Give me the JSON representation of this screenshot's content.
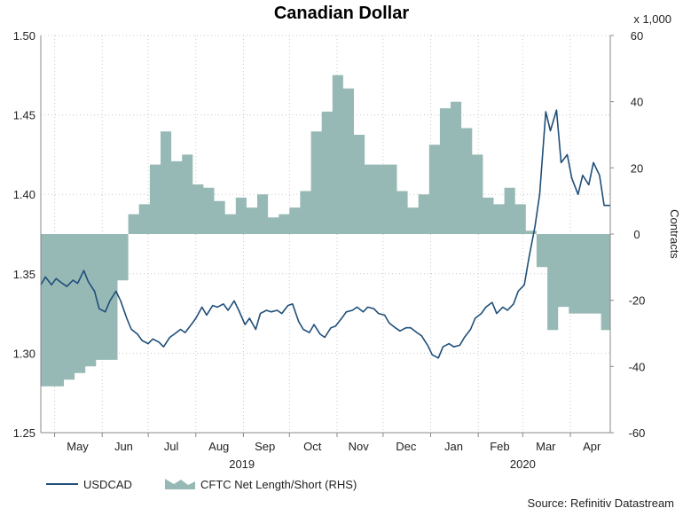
{
  "chart_data": {
    "type": "line",
    "title": "Canadian Dollar",
    "left_axis": {
      "label": "",
      "min": 1.25,
      "max": 1.5,
      "ticks": [
        "1.25",
        "1.30",
        "1.35",
        "1.40",
        "1.45",
        "1.50"
      ]
    },
    "right_axis": {
      "label": "Contracts",
      "unit_note": "x 1,000",
      "min": -60,
      "max": 60,
      "ticks": [
        "-60",
        "-40",
        "-20",
        "0",
        "20",
        "40",
        "60"
      ]
    },
    "x_range": [
      "2019-04-22",
      "2020-04-27"
    ],
    "month_labels": [
      {
        "label": "May",
        "date": "2019-05-16"
      },
      {
        "label": "Jun",
        "date": "2019-06-15"
      },
      {
        "label": "Jul",
        "date": "2019-07-16"
      },
      {
        "label": "Aug",
        "date": "2019-08-16"
      },
      {
        "label": "Sep",
        "date": "2019-09-15"
      },
      {
        "label": "Oct",
        "date": "2019-10-16"
      },
      {
        "label": "Nov",
        "date": "2019-11-15"
      },
      {
        "label": "Dec",
        "date": "2019-12-16"
      },
      {
        "label": "Jan",
        "date": "2020-01-16"
      },
      {
        "label": "Feb",
        "date": "2020-02-15"
      },
      {
        "label": "Mar",
        "date": "2020-03-16"
      },
      {
        "label": "Apr",
        "date": "2020-04-15"
      }
    ],
    "year_labels": [
      {
        "label": "2019",
        "date": "2019-08-31"
      },
      {
        "label": "2020",
        "date": "2020-03-01"
      }
    ],
    "grid_dates": [
      "2019-05-01",
      "2019-06-01",
      "2019-07-01",
      "2019-08-01",
      "2019-09-01",
      "2019-10-01",
      "2019-11-01",
      "2019-12-01",
      "2020-01-01",
      "2020-02-01",
      "2020-03-01",
      "2020-04-01"
    ],
    "series": [
      {
        "name": "CFTC Net Length/Short (RHS)",
        "type": "area",
        "axis": "right",
        "color": "#97b9b5",
        "x": [
          "2019-04-23",
          "2019-04-30",
          "2019-05-07",
          "2019-05-14",
          "2019-05-21",
          "2019-05-28",
          "2019-06-04",
          "2019-06-11",
          "2019-06-18",
          "2019-06-25",
          "2019-07-02",
          "2019-07-09",
          "2019-07-16",
          "2019-07-23",
          "2019-07-30",
          "2019-08-06",
          "2019-08-13",
          "2019-08-20",
          "2019-08-27",
          "2019-09-03",
          "2019-09-10",
          "2019-09-17",
          "2019-09-24",
          "2019-10-01",
          "2019-10-08",
          "2019-10-15",
          "2019-10-22",
          "2019-10-29",
          "2019-11-05",
          "2019-11-12",
          "2019-11-19",
          "2019-11-26",
          "2019-12-03",
          "2019-12-10",
          "2019-12-17",
          "2019-12-24",
          "2019-12-31",
          "2020-01-07",
          "2020-01-14",
          "2020-01-21",
          "2020-01-28",
          "2020-02-04",
          "2020-02-11",
          "2020-02-18",
          "2020-02-25",
          "2020-03-03",
          "2020-03-10",
          "2020-03-17",
          "2020-03-24",
          "2020-03-31",
          "2020-04-07",
          "2020-04-14",
          "2020-04-21",
          "2020-04-28"
        ],
        "values": [
          -46,
          -46,
          -44,
          -42,
          -40,
          -38,
          -38,
          -14,
          6,
          9,
          21,
          31,
          22,
          24,
          15,
          14,
          10,
          6,
          11,
          8,
          12,
          5,
          6,
          8,
          13,
          31,
          37,
          48,
          44,
          30,
          21,
          21,
          21,
          13,
          8,
          12,
          27,
          38,
          40,
          32,
          24,
          11,
          9,
          14,
          9,
          1,
          -10,
          -29,
          -22,
          -24,
          -24,
          -24,
          -29,
          -29
        ]
      },
      {
        "name": "USDCAD",
        "type": "line",
        "axis": "left",
        "color": "#1f4e79",
        "x": [
          "2019-04-22",
          "2019-04-25",
          "2019-04-29",
          "2019-05-02",
          "2019-05-06",
          "2019-05-09",
          "2019-05-13",
          "2019-05-16",
          "2019-05-20",
          "2019-05-23",
          "2019-05-27",
          "2019-05-30",
          "2019-06-03",
          "2019-06-06",
          "2019-06-10",
          "2019-06-13",
          "2019-06-17",
          "2019-06-20",
          "2019-06-24",
          "2019-06-27",
          "2019-07-01",
          "2019-07-04",
          "2019-07-08",
          "2019-07-11",
          "2019-07-15",
          "2019-07-18",
          "2019-07-22",
          "2019-07-25",
          "2019-07-29",
          "2019-08-01",
          "2019-08-05",
          "2019-08-08",
          "2019-08-12",
          "2019-08-15",
          "2019-08-19",
          "2019-08-22",
          "2019-08-26",
          "2019-08-29",
          "2019-09-02",
          "2019-09-05",
          "2019-09-09",
          "2019-09-12",
          "2019-09-16",
          "2019-09-19",
          "2019-09-23",
          "2019-09-26",
          "2019-09-30",
          "2019-10-03",
          "2019-10-07",
          "2019-10-10",
          "2019-10-14",
          "2019-10-17",
          "2019-10-21",
          "2019-10-24",
          "2019-10-28",
          "2019-10-31",
          "2019-11-04",
          "2019-11-07",
          "2019-11-11",
          "2019-11-14",
          "2019-11-18",
          "2019-11-21",
          "2019-11-25",
          "2019-11-28",
          "2019-12-02",
          "2019-12-05",
          "2019-12-09",
          "2019-12-12",
          "2019-12-16",
          "2019-12-19",
          "2019-12-23",
          "2019-12-26",
          "2019-12-30",
          "2020-01-02",
          "2020-01-06",
          "2020-01-09",
          "2020-01-13",
          "2020-01-16",
          "2020-01-20",
          "2020-01-23",
          "2020-01-27",
          "2020-01-30",
          "2020-02-03",
          "2020-02-06",
          "2020-02-10",
          "2020-02-13",
          "2020-02-17",
          "2020-02-20",
          "2020-02-24",
          "2020-02-27",
          "2020-03-02",
          "2020-03-05",
          "2020-03-09",
          "2020-03-12",
          "2020-03-16",
          "2020-03-19",
          "2020-03-23",
          "2020-03-26",
          "2020-03-30",
          "2020-04-02",
          "2020-04-06",
          "2020-04-09",
          "2020-04-13",
          "2020-04-16",
          "2020-04-20",
          "2020-04-23",
          "2020-04-27"
        ],
        "values": [
          1.343,
          1.348,
          1.343,
          1.347,
          1.344,
          1.342,
          1.346,
          1.344,
          1.352,
          1.345,
          1.339,
          1.328,
          1.326,
          1.333,
          1.339,
          1.333,
          1.322,
          1.315,
          1.312,
          1.308,
          1.306,
          1.309,
          1.307,
          1.304,
          1.31,
          1.312,
          1.315,
          1.313,
          1.318,
          1.322,
          1.329,
          1.324,
          1.33,
          1.329,
          1.331,
          1.327,
          1.333,
          1.327,
          1.318,
          1.322,
          1.315,
          1.325,
          1.327,
          1.326,
          1.327,
          1.325,
          1.33,
          1.331,
          1.32,
          1.315,
          1.313,
          1.318,
          1.312,
          1.31,
          1.316,
          1.317,
          1.322,
          1.326,
          1.327,
          1.329,
          1.326,
          1.329,
          1.328,
          1.325,
          1.324,
          1.319,
          1.316,
          1.314,
          1.316,
          1.316,
          1.313,
          1.311,
          1.305,
          1.299,
          1.297,
          1.304,
          1.306,
          1.304,
          1.305,
          1.31,
          1.315,
          1.322,
          1.325,
          1.329,
          1.332,
          1.325,
          1.329,
          1.327,
          1.331,
          1.339,
          1.343,
          1.36,
          1.38,
          1.4,
          1.452,
          1.44,
          1.453,
          1.42,
          1.425,
          1.41,
          1.4,
          1.412,
          1.406,
          1.42,
          1.412,
          1.393,
          1.393
        ]
      }
    ]
  },
  "legend": {
    "line_label": "USDCAD",
    "area_label": "CFTC Net Length/Short (RHS)"
  },
  "source": "Source: Refinitiv Datastream",
  "colors": {
    "line": "#1f4e79",
    "area": "#97b9b5",
    "grid": "#c8c8c8",
    "axis": "#888888"
  }
}
